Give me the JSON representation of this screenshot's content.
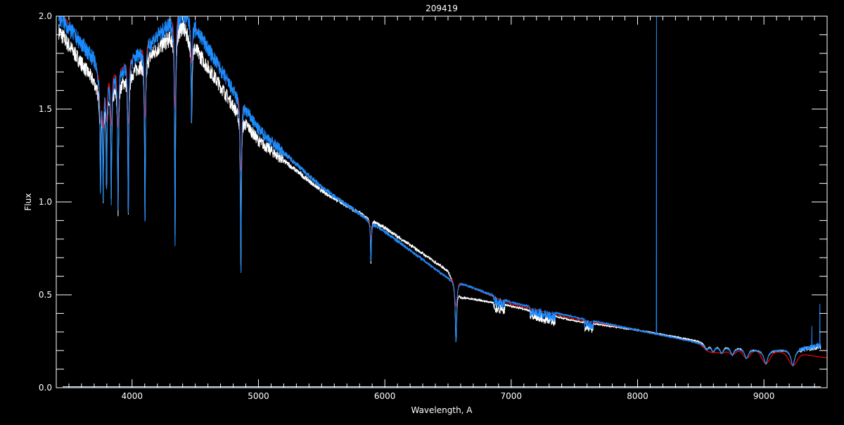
{
  "chart_data": {
    "type": "line",
    "title": "209419",
    "xlabel": "Wavelength, A",
    "ylabel": "Flux",
    "xlim": [
      3400,
      9500
    ],
    "ylim": [
      0,
      2.0
    ],
    "xticks": [
      4000,
      5000,
      6000,
      7000,
      8000,
      9000
    ],
    "xtick_labels": [
      "4000",
      "5000",
      "6000",
      "7000",
      "8000",
      "9000"
    ],
    "yticks": [
      0,
      0.5,
      1.0,
      1.5,
      2.0
    ],
    "ytick_labels": [
      "0.0",
      "0.5",
      "1.0",
      "1.5",
      "2.0"
    ],
    "grid": false,
    "colors": {
      "background": "#000000",
      "axes": "#ffffff",
      "white_series": "#ffffff",
      "blue_series": "#1a8cff",
      "red_series": "#ff0000"
    },
    "series": [
      {
        "color": "#ffffff",
        "continuum_x": [
          3420,
          3700,
          3760,
          4400,
          4450,
          4800,
          5000,
          5500,
          6000,
          6500,
          6600,
          7000,
          7500,
          8000,
          8500,
          9000,
          9300,
          9450
        ],
        "continuum_y": [
          1.92,
          1.65,
          1.55,
          1.95,
          1.88,
          1.52,
          1.33,
          1.06,
          0.86,
          0.63,
          0.49,
          0.44,
          0.36,
          0.31,
          0.25,
          0.2,
          0.21,
          0.22
        ]
      },
      {
        "color": "#1a8cff",
        "continuum_x": [
          3420,
          3700,
          3760,
          4400,
          4500,
          4800,
          4900,
          5000,
          5500,
          6000,
          6500,
          7000,
          7500,
          8000,
          8500,
          9000,
          9300,
          9450
        ],
        "continuum_y": [
          2.0,
          1.77,
          1.62,
          2.02,
          1.94,
          1.6,
          1.5,
          1.39,
          1.08,
          0.84,
          0.59,
          0.46,
          0.38,
          0.31,
          0.24,
          0.2,
          0.21,
          0.23
        ]
      },
      {
        "color": "#ff0000",
        "continuum_x": [
          3460,
          3700,
          3760,
          4400,
          4500,
          4800,
          4900,
          5000,
          5500,
          6000,
          6500,
          7000,
          7500,
          8000,
          8500,
          9000,
          9300,
          9500
        ],
        "continuum_y": [
          2.0,
          1.75,
          1.62,
          2.02,
          1.94,
          1.6,
          1.5,
          1.39,
          1.08,
          0.84,
          0.59,
          0.45,
          0.37,
          0.31,
          0.24,
          0.2,
          0.18,
          0.16
        ]
      }
    ],
    "absorption_lines": [
      {
        "wavelength": 3750,
        "min_flux": 1.1
      },
      {
        "wavelength": 3771,
        "min_flux": 1.05
      },
      {
        "wavelength": 3798,
        "min_flux": 1.1
      },
      {
        "wavelength": 3835,
        "min_flux": 1.02
      },
      {
        "wavelength": 3889,
        "min_flux": 0.95
      },
      {
        "wavelength": 3970,
        "min_flux": 0.9
      },
      {
        "wavelength": 4102,
        "min_flux": 0.86
      },
      {
        "wavelength": 4340,
        "min_flux": 0.78
      },
      {
        "wavelength": 4471,
        "min_flux": 1.42
      },
      {
        "wavelength": 4861,
        "min_flux": 0.6
      },
      {
        "wavelength": 5890,
        "min_flux": 0.67
      },
      {
        "wavelength": 6563,
        "min_flux": 0.24
      },
      {
        "wavelength": 8545,
        "min_flux": 0.21
      },
      {
        "wavelength": 8598,
        "min_flux": 0.2
      },
      {
        "wavelength": 8665,
        "min_flux": 0.19
      },
      {
        "wavelength": 8750,
        "min_flux": 0.18
      },
      {
        "wavelength": 8862,
        "min_flux": 0.16
      },
      {
        "wavelength": 9015,
        "min_flux": 0.13
      },
      {
        "wavelength": 9229,
        "min_flux": 0.12
      }
    ],
    "emission_spike": {
      "wavelength": 8150,
      "max_flux": 2.0
    }
  }
}
